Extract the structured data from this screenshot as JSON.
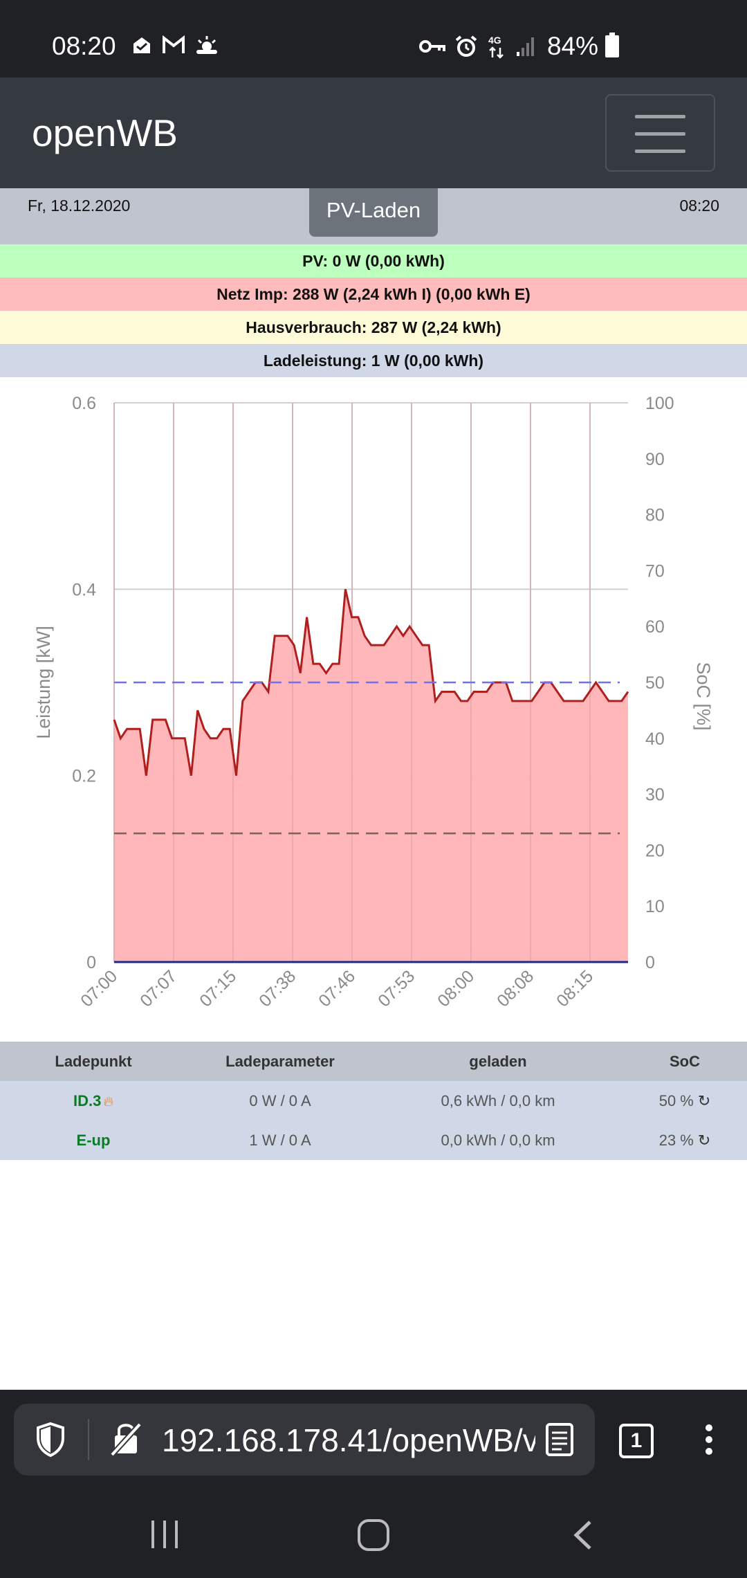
{
  "status_bar": {
    "time": "08:20",
    "battery": "84%",
    "network": "4G",
    "left_icons": [
      "mail-app-icon",
      "gmail-icon",
      "weather-icon"
    ],
    "right_icons": [
      "vpn-key-icon",
      "alarm-icon",
      "network-4g-icon",
      "signal-icon",
      "battery-icon"
    ]
  },
  "app": {
    "brand": "openWB",
    "menu_icon": "hamburger-menu-icon"
  },
  "header": {
    "date": "Fr, 18.12.2020",
    "time": "08:20",
    "mode_button": "PV-Laden"
  },
  "info": {
    "pv": "PV: 0 W (0,00 kWh)",
    "netz": "Netz Imp: 288 W (2,24 kWh I) (0,00 kWh E)",
    "haus": "Hausverbrauch: 287 W (2,24 kWh)",
    "lade": "Ladeleistung: 1 W (0,00 kWh)"
  },
  "chart_data": {
    "type": "area",
    "x_tick_labels": [
      "07:00",
      "07:07",
      "07:15",
      "07:38",
      "07:46",
      "07:53",
      "08:00",
      "08:08",
      "08:15"
    ],
    "ylabel": "Leistung [kW]",
    "y2label": "SoC [%]",
    "ylim": [
      0,
      0.6
    ],
    "y_ticks": [
      "0",
      "0.2",
      "0.4",
      "0.6"
    ],
    "y2lim": [
      0,
      100
    ],
    "y2_ticks": [
      "0",
      "10",
      "20",
      "30",
      "40",
      "50",
      "60",
      "70",
      "80",
      "90",
      "100"
    ],
    "grid": true,
    "series": [
      {
        "color": "#b01e1e",
        "fill": "#ffb3b6",
        "axis": "left",
        "values": [
          0.26,
          0.24,
          0.25,
          0.25,
          0.25,
          0.2,
          0.26,
          0.26,
          0.26,
          0.24,
          0.24,
          0.24,
          0.2,
          0.27,
          0.25,
          0.24,
          0.24,
          0.25,
          0.25,
          0.2,
          0.28,
          0.29,
          0.3,
          0.3,
          0.29,
          0.35,
          0.35,
          0.35,
          0.34,
          0.31,
          0.37,
          0.32,
          0.32,
          0.31,
          0.32,
          0.32,
          0.4,
          0.37,
          0.37,
          0.35,
          0.34,
          0.34,
          0.34,
          0.35,
          0.36,
          0.35,
          0.36,
          0.35,
          0.34,
          0.34,
          0.28,
          0.29,
          0.29,
          0.29,
          0.28,
          0.28,
          0.29,
          0.29,
          0.29,
          0.3,
          0.3,
          0.3,
          0.28,
          0.28,
          0.28,
          0.28,
          0.29,
          0.3,
          0.3,
          0.29,
          0.28,
          0.28,
          0.28,
          0.28,
          0.29,
          0.3,
          0.29,
          0.28,
          0.28,
          0.28,
          0.29
        ]
      },
      {
        "color": "#6f6ff3",
        "dash": true,
        "axis": "right",
        "value": 50
      },
      {
        "color": "#7a6262",
        "dash": true,
        "axis": "right",
        "value": 23
      }
    ]
  },
  "table": {
    "headers": [
      "Ladepunkt",
      "Ladeparameter",
      "geladen",
      "SoC"
    ],
    "rows": [
      {
        "name": "ID.3",
        "icon": "plug-flame-icon",
        "param": "0 W / 0 A",
        "geladen": "0,6 kWh / 0,0 km",
        "soc": "50 %"
      },
      {
        "name": "E-up",
        "icon": "",
        "param": "1 W / 0 A",
        "geladen": "0,0 kWh / 0,0 km",
        "soc": "23 %"
      }
    ]
  },
  "browser": {
    "url": "192.168.178.41/openWB/v",
    "tab_count": "1"
  }
}
